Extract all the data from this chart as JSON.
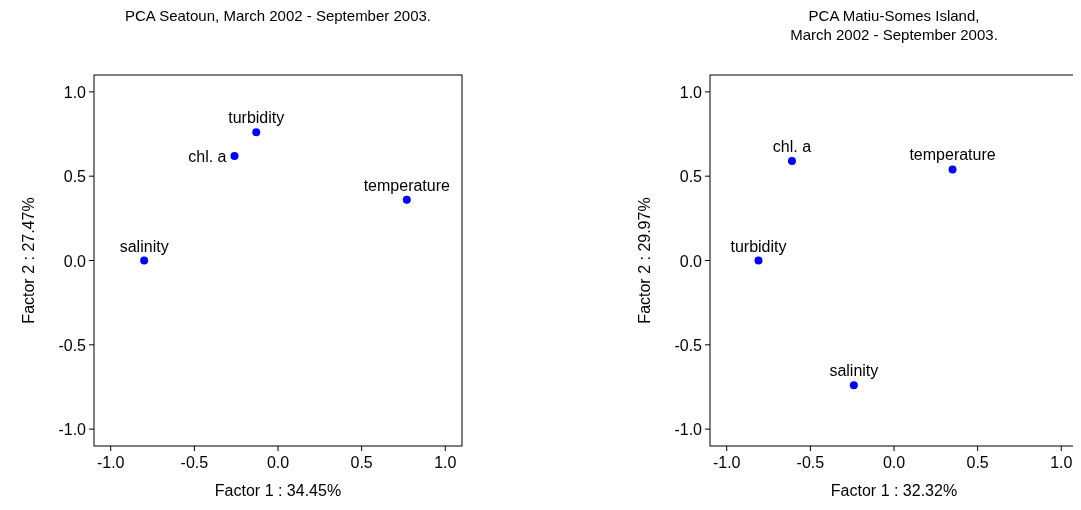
{
  "chart_data": [
    {
      "type": "scatter",
      "title": "PCA Seatoun, March 2002 - September 2003.",
      "xlabel": "Factor 1 : 34.45%",
      "ylabel": "Factor 2 : 27.47%",
      "xlim": [
        -1.1,
        1.1
      ],
      "ylim": [
        -1.1,
        1.1
      ],
      "xticks": [
        {
          "value": -1,
          "label": "-1.0"
        },
        {
          "value": -0.5,
          "label": "-0.5"
        },
        {
          "value": 0,
          "label": "0.0"
        },
        {
          "value": 0.5,
          "label": "0.5"
        },
        {
          "value": 1,
          "label": "1.0"
        }
      ],
      "yticks": [
        {
          "value": -1,
          "label": "-1.0"
        },
        {
          "value": -0.5,
          "label": "-0.5"
        },
        {
          "value": 0,
          "label": "0.0"
        },
        {
          "value": 0.5,
          "label": "0.5"
        },
        {
          "value": 1,
          "label": "1.0"
        }
      ],
      "marker": "circle",
      "series": [
        {
          "name": "salinity",
          "color": "#0000ff",
          "x": [
            -0.8
          ],
          "values": [
            0.0
          ]
        },
        {
          "name": "chl. a",
          "color": "#0000ff",
          "x": [
            -0.26
          ],
          "values": [
            0.62
          ]
        },
        {
          "name": "turbidity",
          "color": "#0000ff",
          "x": [
            -0.13
          ],
          "values": [
            0.76
          ]
        },
        {
          "name": "temperature",
          "color": "#0000ff",
          "x": [
            0.77
          ],
          "values": [
            0.36
          ]
        }
      ]
    },
    {
      "type": "scatter",
      "title": "PCA Matiu-Somes Island,\nMarch 2002 - September 2003.",
      "xlabel": "Factor 1 : 32.32%",
      "ylabel": "Factor 2 : 29.97%",
      "xlim": [
        -1.1,
        1.1
      ],
      "ylim": [
        -1.1,
        1.1
      ],
      "xticks": [
        {
          "value": -1,
          "label": "-1.0"
        },
        {
          "value": -0.5,
          "label": "-0.5"
        },
        {
          "value": 0,
          "label": "0.0"
        },
        {
          "value": 0.5,
          "label": "0.5"
        },
        {
          "value": 1,
          "label": "1.0"
        }
      ],
      "yticks": [
        {
          "value": -1,
          "label": "-1.0"
        },
        {
          "value": -0.5,
          "label": "-0.5"
        },
        {
          "value": 0,
          "label": "0.0"
        },
        {
          "value": 0.5,
          "label": "0.5"
        },
        {
          "value": 1,
          "label": "1.0"
        }
      ],
      "marker": "circle",
      "series": [
        {
          "name": "turbidity",
          "color": "#0000ff",
          "x": [
            -0.81
          ],
          "values": [
            0.0
          ]
        },
        {
          "name": "chl. a",
          "color": "#0000ff",
          "x": [
            -0.61
          ],
          "values": [
            0.59
          ]
        },
        {
          "name": "temperature",
          "color": "#0000ff",
          "x": [
            0.35
          ],
          "values": [
            0.54
          ]
        },
        {
          "name": "salinity",
          "color": "#0000ff",
          "x": [
            -0.24
          ],
          "values": [
            -0.74
          ]
        }
      ]
    }
  ]
}
